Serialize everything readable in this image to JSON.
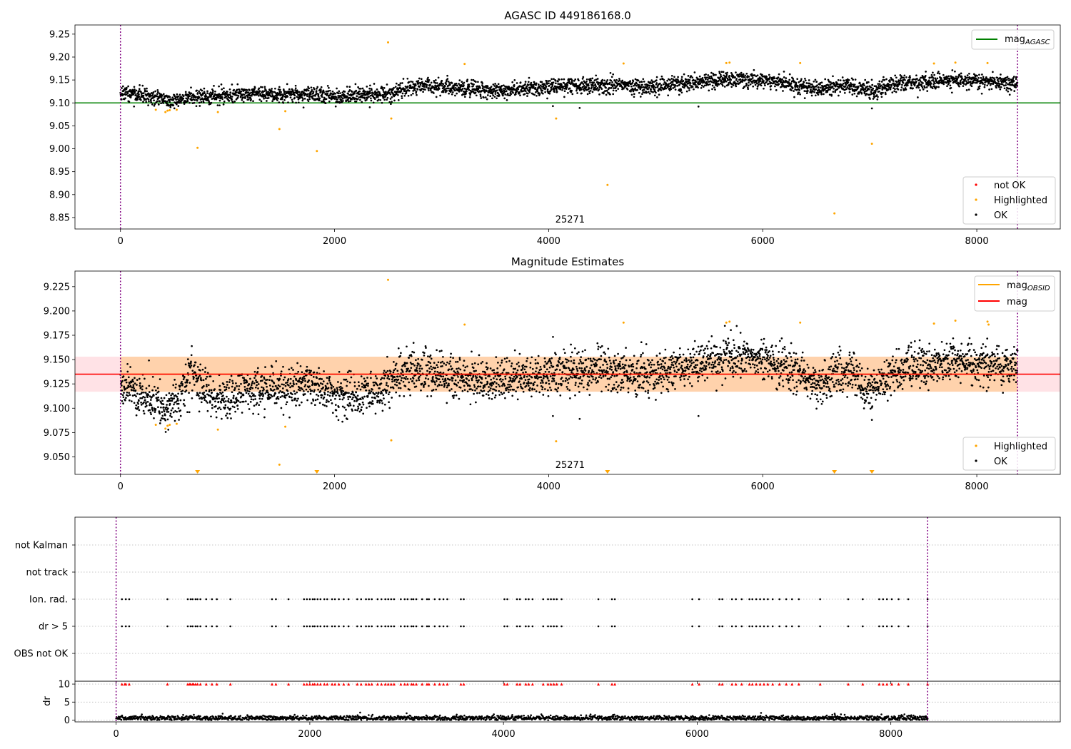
{
  "chart_data": [
    {
      "type": "scatter",
      "title": "AGASC ID 449186168.0",
      "xlim": [
        -425,
        8780
      ],
      "ylim": [
        8.825,
        9.27
      ],
      "x_ticks": [
        0,
        2000,
        4000,
        6000,
        8000
      ],
      "y_ticks": [
        8.85,
        8.9,
        8.95,
        9.0,
        9.05,
        9.1,
        9.15,
        9.2,
        9.25
      ],
      "y_tick_labels": [
        "8.85",
        "8.90",
        "8.95",
        "9.00",
        "9.05",
        "9.10",
        "9.15",
        "9.20",
        "9.25"
      ],
      "obsid_label": "25271",
      "obs_bounds": [
        0,
        8380
      ],
      "reference_lines": [
        {
          "name": "mag",
          "sub": "AGASC",
          "y": 9.1,
          "x_range": [
            -425,
            8780
          ],
          "color": "#008000"
        }
      ],
      "legend_lines": [
        {
          "name": "mag",
          "sub": "AGASC",
          "color": "#008000"
        }
      ],
      "legend_points": [
        {
          "name": "not OK",
          "color": "#ff0000"
        },
        {
          "name": "Highlighted",
          "color": "#ffa500"
        },
        {
          "name": "OK",
          "color": "#000000"
        }
      ],
      "series": [
        {
          "name": "OK",
          "color": "#000000",
          "n_points": 3700,
          "trend": [
            [
              0,
              9.125
            ],
            [
              300,
              9.112
            ],
            [
              500,
              9.105
            ],
            [
              700,
              9.112
            ],
            [
              1000,
              9.118
            ],
            [
              1500,
              9.12
            ],
            [
              2000,
              9.115
            ],
            [
              2500,
              9.12
            ],
            [
              2800,
              9.138
            ],
            [
              3500,
              9.128
            ],
            [
              4000,
              9.135
            ],
            [
              4500,
              9.14
            ],
            [
              5000,
              9.135
            ],
            [
              5500,
              9.148
            ],
            [
              5800,
              9.152
            ],
            [
              6200,
              9.145
            ],
            [
              6500,
              9.13
            ],
            [
              6800,
              9.14
            ],
            [
              7000,
              9.125
            ],
            [
              7300,
              9.143
            ],
            [
              7800,
              9.15
            ],
            [
              8380,
              9.142
            ]
          ],
          "outliers": [
            [
              4040,
              9.093
            ],
            [
              4290,
              9.089
            ],
            [
              5400,
              9.092
            ],
            [
              7020,
              9.088
            ]
          ]
        },
        {
          "name": "Highlighted",
          "color": "#ffa500",
          "points": [
            [
              330,
              9.085
            ],
            [
              420,
              9.08
            ],
            [
              440,
              9.083
            ],
            [
              460,
              9.084
            ],
            [
              525,
              9.085
            ],
            [
              720,
              9.002
            ],
            [
              910,
              9.08
            ],
            [
              1485,
              9.043
            ],
            [
              1540,
              9.082
            ],
            [
              1835,
              8.995
            ],
            [
              2500,
              9.232
            ],
            [
              2530,
              9.066
            ],
            [
              3215,
              9.185
            ],
            [
              4070,
              9.066
            ],
            [
              4550,
              8.921
            ],
            [
              4700,
              9.186
            ],
            [
              5660,
              9.187
            ],
            [
              5690,
              9.188
            ],
            [
              6350,
              9.187
            ],
            [
              6670,
              8.859
            ],
            [
              7020,
              9.011
            ],
            [
              7600,
              9.186
            ],
            [
              7800,
              9.188
            ],
            [
              8100,
              9.187
            ]
          ]
        }
      ]
    },
    {
      "type": "scatter",
      "title": "Magnitude Estimates",
      "xlim": [
        -425,
        8780
      ],
      "ylim": [
        9.032,
        9.241
      ],
      "x_ticks": [
        0,
        2000,
        4000,
        6000,
        8000
      ],
      "y_ticks": [
        9.05,
        9.075,
        9.1,
        9.125,
        9.15,
        9.175,
        9.2,
        9.225
      ],
      "y_tick_labels": [
        "9.050",
        "9.075",
        "9.100",
        "9.125",
        "9.150",
        "9.175",
        "9.200",
        "9.225"
      ],
      "obsid_label": "25271",
      "obs_bounds": [
        0,
        8380
      ],
      "bands": [
        {
          "x_range": [
            -425,
            8780
          ],
          "y_range": [
            9.117,
            9.153
          ],
          "color": "#ffb6c1"
        },
        {
          "x_range": [
            0,
            8380
          ],
          "y_range": [
            9.117,
            9.153
          ],
          "color": "#ffa500"
        }
      ],
      "reference_lines": [
        {
          "name": "mag",
          "sub": "OBSID",
          "y": 9.135,
          "x_range": [
            0,
            8380
          ],
          "color": "#ffa500"
        },
        {
          "name": "mag",
          "sub": "",
          "y": 9.135,
          "x_range": [
            -425,
            8780
          ],
          "color": "#ff0000"
        }
      ],
      "legend_lines": [
        {
          "name": "mag",
          "sub": "OBSID",
          "color": "#ffa500"
        },
        {
          "name": "mag",
          "sub": "",
          "color": "#ff0000"
        }
      ],
      "legend_points": [
        {
          "name": "Highlighted",
          "color": "#ffa500"
        },
        {
          "name": "OK",
          "color": "#000000"
        }
      ],
      "series": [
        {
          "name": "OK",
          "color": "#000000",
          "n_points": 3700,
          "trend": [
            [
              0,
              9.125
            ],
            [
              300,
              9.108
            ],
            [
              420,
              9.1
            ],
            [
              550,
              9.11
            ],
            [
              650,
              9.135
            ],
            [
              900,
              9.108
            ],
            [
              1200,
              9.12
            ],
            [
              1500,
              9.12
            ],
            [
              1800,
              9.125
            ],
            [
              2100,
              9.11
            ],
            [
              2400,
              9.118
            ],
            [
              2700,
              9.14
            ],
            [
              3000,
              9.135
            ],
            [
              3500,
              9.128
            ],
            [
              4000,
              9.135
            ],
            [
              4500,
              9.14
            ],
            [
              5000,
              9.135
            ],
            [
              5500,
              9.148
            ],
            [
              5800,
              9.152
            ],
            [
              6200,
              9.145
            ],
            [
              6500,
              9.125
            ],
            [
              6800,
              9.14
            ],
            [
              7000,
              9.118
            ],
            [
              7300,
              9.142
            ],
            [
              7800,
              9.148
            ],
            [
              8380,
              9.142
            ]
          ],
          "outliers": [
            [
              4040,
              9.092
            ],
            [
              4290,
              9.089
            ],
            [
              5400,
              9.092
            ],
            [
              7020,
              9.088
            ]
          ]
        },
        {
          "name": "Highlighted",
          "color": "#ffa500",
          "points": [
            [
              330,
              9.083
            ],
            [
              420,
              9.079
            ],
            [
              440,
              9.082
            ],
            [
              460,
              9.083
            ],
            [
              525,
              9.084
            ],
            [
              910,
              9.078
            ],
            [
              1485,
              9.042
            ],
            [
              1540,
              9.081
            ],
            [
              2500,
              9.232
            ],
            [
              2530,
              9.067
            ],
            [
              3215,
              9.186
            ],
            [
              4070,
              9.066
            ],
            [
              4700,
              9.188
            ],
            [
              5660,
              9.188
            ],
            [
              5690,
              9.189
            ],
            [
              6350,
              9.188
            ],
            [
              7600,
              9.187
            ],
            [
              7800,
              9.19
            ],
            [
              8100,
              9.189
            ],
            [
              8110,
              9.186
            ]
          ]
        },
        {
          "name": "Highlighted (off scale)",
          "color": "#ffa500",
          "marker": "triangle-down",
          "points": [
            [
              720,
              9.032
            ],
            [
              1835,
              9.032
            ],
            [
              4550,
              9.032
            ],
            [
              6670,
              9.032
            ],
            [
              7020,
              9.032
            ]
          ]
        }
      ]
    },
    {
      "type": "scatter",
      "title": "",
      "xlim": [
        -425,
        9750
      ],
      "x_ticks": [
        0,
        2000,
        4000,
        6000,
        8000
      ],
      "obs_bounds": [
        0,
        8380
      ],
      "flag_rows": [
        "not Kalman",
        "not track",
        "Ion. rad.",
        "dr > 5",
        "OBS not OK"
      ],
      "flag_events": {
        "Ion. rad.": [
          60,
          100,
          135,
          530,
          740,
          770,
          790,
          820,
          840,
          870,
          930,
          990,
          1040,
          1180,
          1610,
          1650,
          1780,
          1940,
          1970,
          2000,
          2030,
          2050,
          2080,
          2110,
          2150,
          2180,
          2230,
          2260,
          2300,
          2350,
          2400,
          2490,
          2530,
          2580,
          2610,
          2640,
          2700,
          2740,
          2780,
          2810,
          2840,
          2870,
          2940,
          2980,
          3010,
          3050,
          3070,
          3100,
          3160,
          3210,
          3230,
          3290,
          3340,
          3380,
          3420,
          3560,
          3590,
          4010,
          4040,
          4140,
          4170,
          4230,
          4260,
          4300,
          4410,
          4460,
          4490,
          4520,
          4550,
          4600,
          4980,
          5120,
          5150,
          5950,
          6020,
          6230,
          6260,
          6360,
          6400,
          6460,
          6540,
          6570,
          6610,
          6650,
          6690,
          6730,
          6780,
          6850,
          6920,
          6980,
          7050,
          7270,
          7560,
          7710,
          7880,
          7920,
          7960,
          8010,
          8080,
          8180,
          8380
        ],
        "dr > 5": [
          60,
          100,
          135,
          530,
          740,
          770,
          790,
          820,
          840,
          870,
          930,
          990,
          1040,
          1180,
          1610,
          1650,
          1780,
          1940,
          1970,
          2000,
          2030,
          2050,
          2080,
          2110,
          2150,
          2180,
          2230,
          2260,
          2300,
          2350,
          2400,
          2490,
          2530,
          2580,
          2610,
          2640,
          2700,
          2740,
          2780,
          2810,
          2840,
          2870,
          2940,
          2980,
          3010,
          3050,
          3070,
          3100,
          3160,
          3210,
          3230,
          3290,
          3340,
          3380,
          3420,
          3560,
          3590,
          4010,
          4040,
          4140,
          4170,
          4230,
          4260,
          4300,
          4410,
          4460,
          4490,
          4520,
          4550,
          4600,
          4980,
          5120,
          5150,
          5950,
          6020,
          6230,
          6260,
          6360,
          6400,
          6460,
          6540,
          6570,
          6610,
          6650,
          6690,
          6730,
          6780,
          6850,
          6920,
          6980,
          7050,
          7270,
          7560,
          7710,
          7880,
          7920,
          7960,
          8010,
          8080,
          8180,
          8380
        ]
      }
    },
    {
      "type": "scatter",
      "title": "",
      "ylabel": "dr",
      "xlim": [
        -425,
        9750
      ],
      "ylim": [
        -0.5,
        10.8
      ],
      "x_ticks": [
        0,
        2000,
        4000,
        6000,
        8000
      ],
      "y_ticks": [
        0,
        5,
        10
      ],
      "obs_bounds": [
        0,
        8380
      ],
      "series": [
        {
          "name": "dr",
          "color": "#000000",
          "n_points": 1900,
          "typical_range": [
            0,
            1.6
          ],
          "outliers": [
            [
              1100,
              1.8
            ],
            [
              2520,
              2.1
            ],
            [
              3000,
              1.9
            ],
            [
              6660,
              2.0
            ],
            [
              7420,
              1.8
            ]
          ]
        },
        {
          "name": "dr > 10 (clipped)",
          "color": "#ff0000",
          "marker": "triangle-up",
          "y": 10,
          "x": [
            60,
            90,
            100,
            135,
            530,
            740,
            760,
            770,
            790,
            800,
            820,
            840,
            870,
            930,
            990,
            1040,
            1180,
            1610,
            1650,
            1780,
            1940,
            1970,
            2000,
            2030,
            2050,
            2080,
            2110,
            2150,
            2180,
            2230,
            2260,
            2300,
            2350,
            2400,
            2490,
            2530,
            2580,
            2610,
            2640,
            2700,
            2740,
            2780,
            2810,
            2840,
            2870,
            2940,
            2980,
            3010,
            3050,
            3070,
            3100,
            3160,
            3210,
            3230,
            3290,
            3340,
            3380,
            3420,
            3560,
            3590,
            4010,
            4040,
            4140,
            4170,
            4230,
            4260,
            4300,
            4410,
            4460,
            4490,
            4520,
            4550,
            4600,
            4980,
            5120,
            5150,
            5950,
            6020,
            6230,
            6260,
            6360,
            6400,
            6460,
            6540,
            6570,
            6610,
            6650,
            6690,
            6730,
            6780,
            6850,
            6920,
            6980,
            7050,
            7270,
            7560,
            7710,
            7880,
            7920,
            7960,
            8010,
            8080,
            8180,
            8380
          ]
        }
      ]
    }
  ]
}
